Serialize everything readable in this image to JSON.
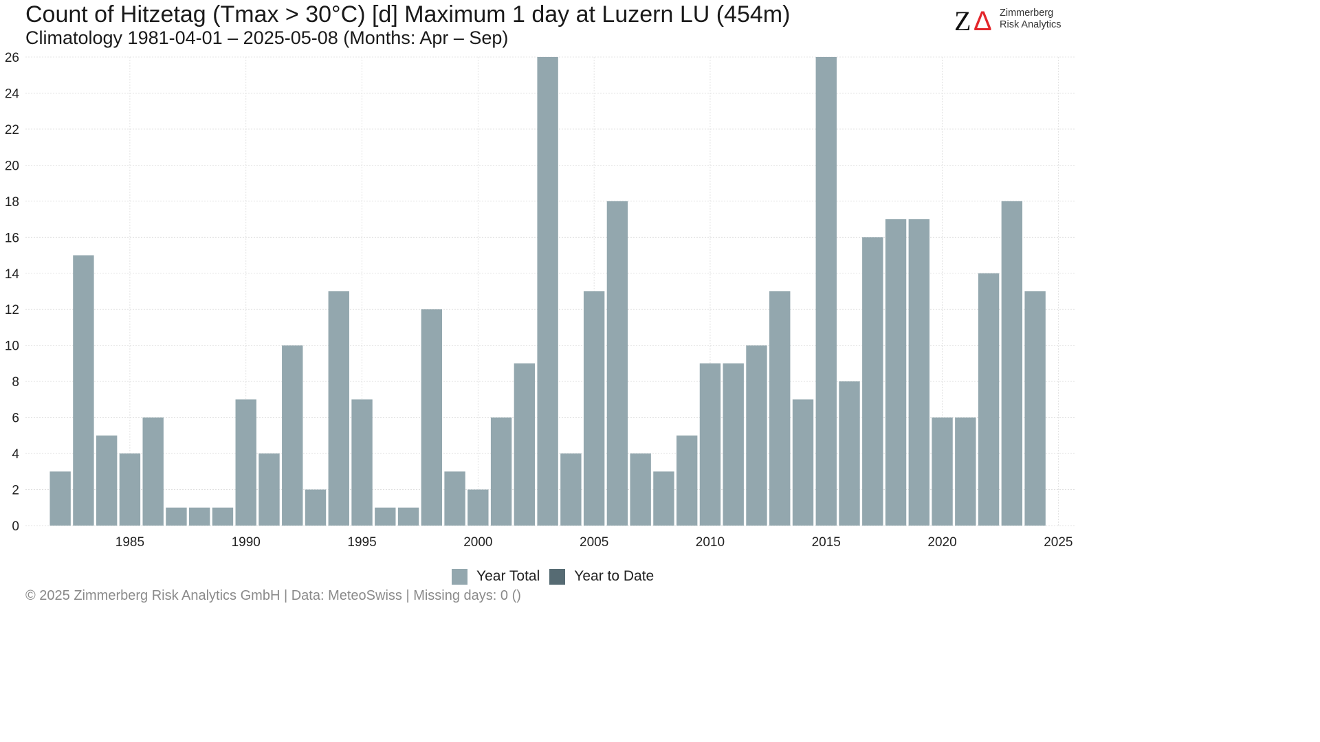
{
  "header": {
    "title": "Count of Hitzetag (Tmax > 30°C) [d] Maximum 1 day at Luzern  LU (454m)",
    "subtitle": "Climatology 1981-04-01 – 2025-05-08 (Months: Apr – Sep)"
  },
  "logo": {
    "mark_z": "Z",
    "mark_delta": "Δ",
    "line1": "Zimmerberg",
    "line2": "Risk Analytics",
    "accent_color": "#e3262b"
  },
  "footer": {
    "text": "©  2025 Zimmerberg Risk Analytics GmbH | Data: MeteoSwiss | Missing days: 0 ()"
  },
  "legend": {
    "items": [
      {
        "label": "Year Total",
        "color": "#93a7ae"
      },
      {
        "label": "Year to Date",
        "color": "#566b73"
      }
    ]
  },
  "chart_data": {
    "type": "bar",
    "x": [
      1982,
      1983,
      1984,
      1985,
      1986,
      1987,
      1988,
      1989,
      1990,
      1991,
      1992,
      1993,
      1994,
      1995,
      1996,
      1997,
      1998,
      1999,
      2000,
      2001,
      2002,
      2003,
      2004,
      2005,
      2006,
      2007,
      2008,
      2009,
      2010,
      2011,
      2012,
      2013,
      2014,
      2015,
      2016,
      2017,
      2018,
      2019,
      2020,
      2021,
      2022,
      2023,
      2024
    ],
    "series": [
      {
        "name": "Year Total",
        "color": "#93a7ae",
        "values": [
          3,
          15,
          5,
          4,
          6,
          1,
          1,
          1,
          7,
          4,
          10,
          2,
          13,
          7,
          1,
          1,
          12,
          3,
          2,
          6,
          9,
          26,
          4,
          13,
          18,
          4,
          3,
          5,
          9,
          9,
          10,
          13,
          7,
          26,
          8,
          16,
          17,
          17,
          6,
          6,
          14,
          18,
          13
        ]
      }
    ],
    "xticks": [
      1985,
      1990,
      1995,
      2000,
      2005,
      2010,
      2015,
      2020,
      2025
    ],
    "yticks": [
      0,
      2,
      4,
      6,
      8,
      10,
      12,
      14,
      16,
      18,
      20,
      22,
      24,
      26
    ],
    "xlim": [
      1980.5,
      2025.7
    ],
    "ylim": [
      0,
      26
    ],
    "grid": true,
    "legend_position": "bottom"
  }
}
